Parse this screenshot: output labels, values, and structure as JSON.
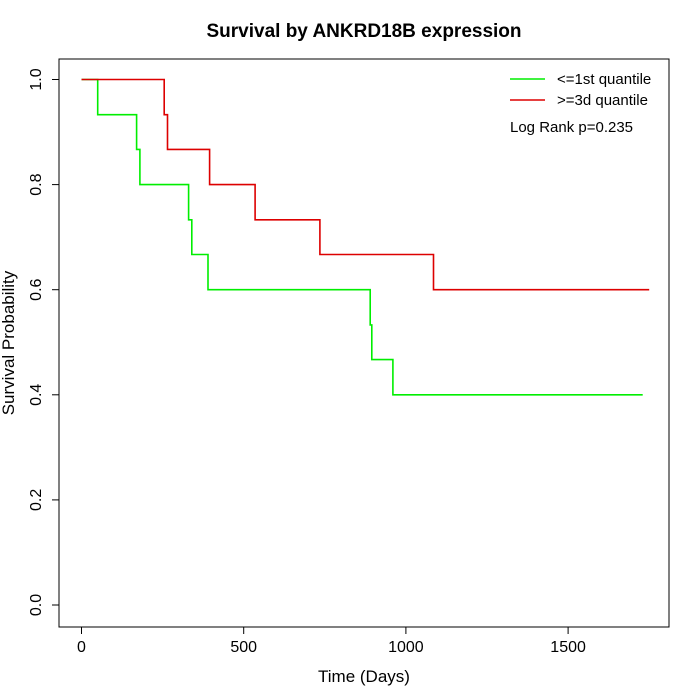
{
  "chart_data": {
    "type": "line",
    "subtype": "kaplan-meier step",
    "title": "Survival by ANKRD18B expression",
    "xlabel": "Time (Days)",
    "ylabel": "Survival Probability",
    "xlim": [
      0,
      1800
    ],
    "ylim": [
      0,
      1.0
    ],
    "x_ticks": [
      0,
      500,
      1000,
      1500
    ],
    "x_tick_labels": [
      "0",
      "500",
      "1000",
      "1500"
    ],
    "y_ticks": [
      0,
      0.2,
      0.4,
      0.6,
      0.8,
      1.0
    ],
    "y_tick_labels": [
      "0.0",
      "0.2",
      "0.4",
      "0.6",
      "0.8",
      "1.0"
    ],
    "grid": false,
    "legend_position": "top-right",
    "annotation": "Log Rank p=0.235",
    "series": [
      {
        "name": "<=1st quantile",
        "color": "#00ee00",
        "points": [
          [
            0,
            1.0
          ],
          [
            50,
            1.0
          ],
          [
            50,
            0.933
          ],
          [
            170,
            0.933
          ],
          [
            170,
            0.867
          ],
          [
            180,
            0.867
          ],
          [
            180,
            0.8
          ],
          [
            330,
            0.8
          ],
          [
            330,
            0.733
          ],
          [
            340,
            0.733
          ],
          [
            340,
            0.667
          ],
          [
            390,
            0.667
          ],
          [
            390,
            0.6
          ],
          [
            890,
            0.6
          ],
          [
            890,
            0.533
          ],
          [
            895,
            0.533
          ],
          [
            895,
            0.467
          ],
          [
            960,
            0.467
          ],
          [
            960,
            0.4
          ],
          [
            1730,
            0.4
          ]
        ]
      },
      {
        "name": ">=3d quantile",
        "color": "#dd0000",
        "points": [
          [
            0,
            1.0
          ],
          [
            255,
            1.0
          ],
          [
            255,
            0.933
          ],
          [
            265,
            0.933
          ],
          [
            265,
            0.867
          ],
          [
            395,
            0.867
          ],
          [
            395,
            0.8
          ],
          [
            535,
            0.8
          ],
          [
            535,
            0.733
          ],
          [
            735,
            0.733
          ],
          [
            735,
            0.667
          ],
          [
            1085,
            0.667
          ],
          [
            1085,
            0.6
          ],
          [
            1750,
            0.6
          ]
        ]
      }
    ]
  }
}
